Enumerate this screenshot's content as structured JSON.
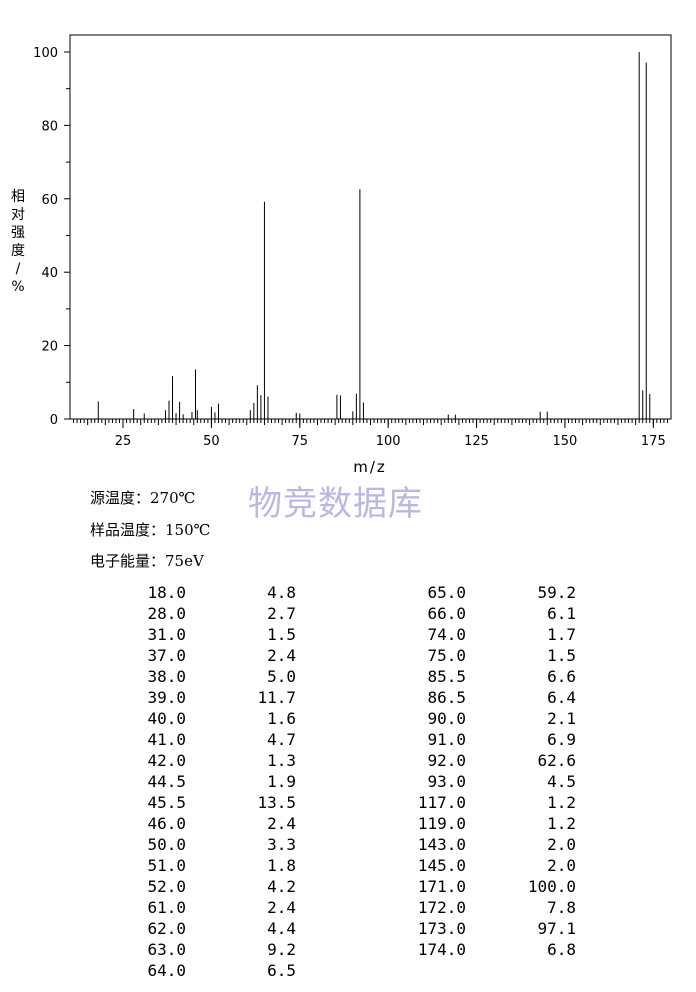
{
  "chart_data": {
    "type": "bar",
    "title": "",
    "xlabel": "m/z",
    "ylabel": [
      "相",
      "对",
      "强",
      "度",
      "/",
      "%"
    ],
    "xlim": [
      10,
      180
    ],
    "ylim": [
      0,
      105
    ],
    "xticks": [
      25,
      50,
      75,
      100,
      125,
      150,
      175
    ],
    "yticks": [
      0,
      20,
      40,
      60,
      80,
      100
    ],
    "grid": false,
    "peaks": [
      [
        18.0,
        4.8
      ],
      [
        28.0,
        2.7
      ],
      [
        31.0,
        1.5
      ],
      [
        37.0,
        2.4
      ],
      [
        38.0,
        5.0
      ],
      [
        39.0,
        11.7
      ],
      [
        40.0,
        1.6
      ],
      [
        41.0,
        4.7
      ],
      [
        42.0,
        1.3
      ],
      [
        44.5,
        1.9
      ],
      [
        45.5,
        13.5
      ],
      [
        46.0,
        2.4
      ],
      [
        50.0,
        3.3
      ],
      [
        51.0,
        1.8
      ],
      [
        52.0,
        4.2
      ],
      [
        61.0,
        2.4
      ],
      [
        62.0,
        4.4
      ],
      [
        63.0,
        9.2
      ],
      [
        64.0,
        6.5
      ],
      [
        65.0,
        59.2
      ],
      [
        66.0,
        6.1
      ],
      [
        74.0,
        1.7
      ],
      [
        75.0,
        1.5
      ],
      [
        85.5,
        6.6
      ],
      [
        86.5,
        6.4
      ],
      [
        90.0,
        2.1
      ],
      [
        91.0,
        6.9
      ],
      [
        92.0,
        62.6
      ],
      [
        93.0,
        4.5
      ],
      [
        117.0,
        1.2
      ],
      [
        119.0,
        1.2
      ],
      [
        143.0,
        2.0
      ],
      [
        145.0,
        2.0
      ],
      [
        171.0,
        100.0
      ],
      [
        172.0,
        7.8
      ],
      [
        173.0,
        97.1
      ],
      [
        174.0,
        6.8
      ]
    ]
  },
  "watermark": "物竞数据库",
  "conditions": [
    {
      "label": "源温度：",
      "value": "270℃"
    },
    {
      "label": "样品温度：",
      "value": "150℃"
    },
    {
      "label": "电子能量：",
      "value": "75eV"
    }
  ],
  "table_left": [
    [
      "18.0",
      "4.8"
    ],
    [
      "28.0",
      "2.7"
    ],
    [
      "31.0",
      "1.5"
    ],
    [
      "37.0",
      "2.4"
    ],
    [
      "38.0",
      "5.0"
    ],
    [
      "39.0",
      "11.7"
    ],
    [
      "40.0",
      "1.6"
    ],
    [
      "41.0",
      "4.7"
    ],
    [
      "42.0",
      "1.3"
    ],
    [
      "44.5",
      "1.9"
    ],
    [
      "45.5",
      "13.5"
    ],
    [
      "46.0",
      "2.4"
    ],
    [
      "50.0",
      "3.3"
    ],
    [
      "51.0",
      "1.8"
    ],
    [
      "52.0",
      "4.2"
    ],
    [
      "61.0",
      "2.4"
    ],
    [
      "62.0",
      "4.4"
    ],
    [
      "63.0",
      "9.2"
    ],
    [
      "64.0",
      "6.5"
    ]
  ],
  "table_right": [
    [
      "65.0",
      "59.2"
    ],
    [
      "66.0",
      "6.1"
    ],
    [
      "74.0",
      "1.7"
    ],
    [
      "75.0",
      "1.5"
    ],
    [
      "85.5",
      "6.6"
    ],
    [
      "86.5",
      "6.4"
    ],
    [
      "90.0",
      "2.1"
    ],
    [
      "91.0",
      "6.9"
    ],
    [
      "92.0",
      "62.6"
    ],
    [
      "93.0",
      "4.5"
    ],
    [
      "117.0",
      "1.2"
    ],
    [
      "119.0",
      "1.2"
    ],
    [
      "143.0",
      "2.0"
    ],
    [
      "145.0",
      "2.0"
    ],
    [
      "171.0",
      "100.0"
    ],
    [
      "172.0",
      "7.8"
    ],
    [
      "173.0",
      "97.1"
    ],
    [
      "174.0",
      "6.8"
    ]
  ]
}
